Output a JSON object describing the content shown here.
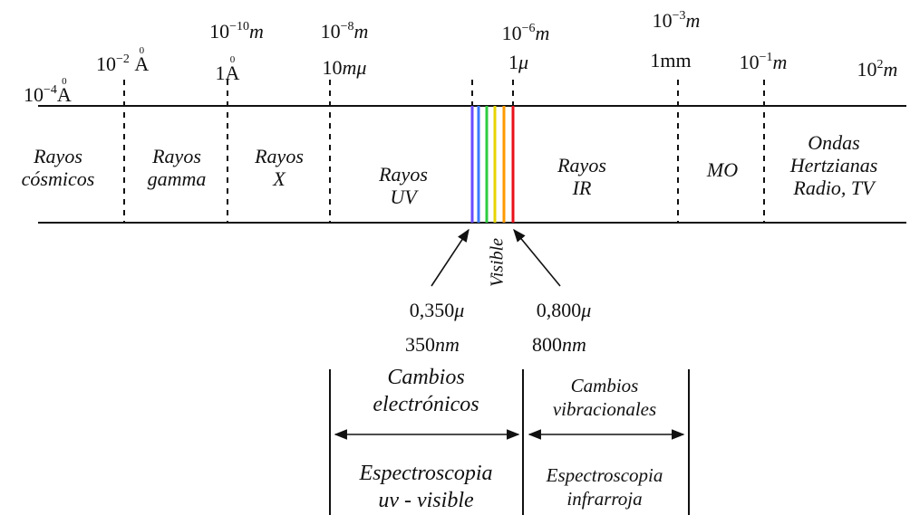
{
  "wavelength_labels": {
    "l1": {
      "base": "10",
      "exp": "−4",
      "unit": "A",
      "ring": "0"
    },
    "l2": {
      "base": "10",
      "exp": "−2",
      "unit": "A",
      "ring": "0"
    },
    "l3_top": {
      "base": "10",
      "exp": "−10",
      "unit": "m"
    },
    "l3_bottom": {
      "prefix": "1",
      "unit": "A",
      "ring": "0"
    },
    "l4_top": {
      "base": "10",
      "exp": "−8",
      "unit": "m"
    },
    "l4_bottom": {
      "prefix": "10",
      "unit": "mμ"
    },
    "l5_top": {
      "base": "10",
      "exp": "−6",
      "unit": "m"
    },
    "l5_bottom": {
      "prefix": "1",
      "unit": "μ"
    },
    "l6_top": {
      "base": "10",
      "exp": "−3",
      "unit": "m"
    },
    "l6_bottom": {
      "text": "1mm"
    },
    "l7": {
      "base": "10",
      "exp": "−1",
      "unit": "m"
    },
    "l8": {
      "base": "10",
      "exp": "2",
      "unit": "m"
    }
  },
  "bands": {
    "cosmic": {
      "line1": "Rayos",
      "line2": "cósmicos"
    },
    "gamma": {
      "line1": "Rayos",
      "line2": "gamma"
    },
    "x": {
      "line1": "Rayos",
      "line2": "X"
    },
    "uv": {
      "line1": "Rayos",
      "line2": "UV"
    },
    "ir": {
      "line1": "Rayos",
      "line2": "IR"
    },
    "mo": {
      "line1": "MO"
    },
    "radio": {
      "line1": "Ondas",
      "line2": "Hertzianas",
      "line3": "Radio, TV"
    }
  },
  "visible_label": "Visible",
  "visible_limits": {
    "low_micro": {
      "num": "0,350",
      "unit": "μ"
    },
    "low_nm": {
      "num": "350",
      "unit": "nm"
    },
    "high_micro": {
      "num": "0,800",
      "unit": "μ"
    },
    "high_nm": {
      "num": "800",
      "unit": "nm"
    }
  },
  "sections": {
    "electronic": {
      "title1": "Cambios",
      "title2": "electrónicos",
      "spec1": "Espectroscopia",
      "spec2": "uv - visible"
    },
    "vibrational": {
      "title1": "Cambios",
      "title2": "vibracionales",
      "spec1": "Espectroscopia",
      "spec2": "infrarroja"
    }
  },
  "colors": {
    "line": "#111111",
    "visible_violet": "#6a4cff",
    "visible_blue": "#3a7bff",
    "visible_green": "#2ecc40",
    "visible_yellow": "#e6d400",
    "visible_orange": "#ff9a00",
    "visible_red": "#e8101a"
  }
}
